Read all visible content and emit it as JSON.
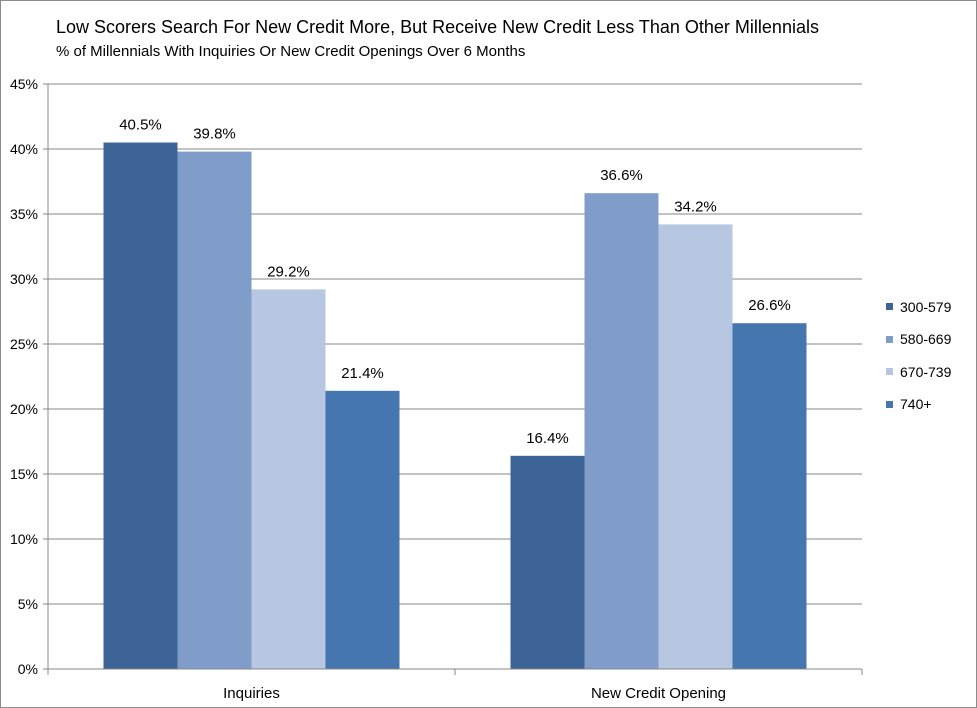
{
  "chart_data": {
    "type": "bar",
    "title": "Low Scorers Search For New Credit More, But Receive New Credit Less Than Other Millennials",
    "subtitle": "% of Millennials  With Inquiries Or New Credit Openings Over 6 Months",
    "categories": [
      "Inquiries",
      "New Credit Opening"
    ],
    "series": [
      {
        "name": "300-579",
        "color": "#3c6496",
        "values": [
          40.5,
          16.4
        ]
      },
      {
        "name": "580-669",
        "color": "#7f9dc8",
        "values": [
          39.8,
          36.6
        ]
      },
      {
        "name": "670-739",
        "color": "#b7c6e1",
        "values": [
          29.2,
          34.2
        ]
      },
      {
        "name": "740+",
        "color": "#4676b0",
        "values": [
          21.4,
          26.6
        ]
      }
    ],
    "data_labels": [
      [
        "40.5%",
        "16.4%"
      ],
      [
        "39.8%",
        "36.6%"
      ],
      [
        "29.2%",
        "34.2%"
      ],
      [
        "21.4%",
        "26.6%"
      ]
    ],
    "yticks": [
      0,
      5,
      10,
      15,
      20,
      25,
      30,
      35,
      40,
      45
    ],
    "ytick_labels": [
      "0%",
      "5%",
      "10%",
      "15%",
      "20%",
      "25%",
      "30%",
      "35%",
      "40%",
      "45%"
    ],
    "ylim": [
      0,
      45
    ],
    "xlabel": "",
    "ylabel": "",
    "grid": true,
    "legend_position": "right"
  }
}
